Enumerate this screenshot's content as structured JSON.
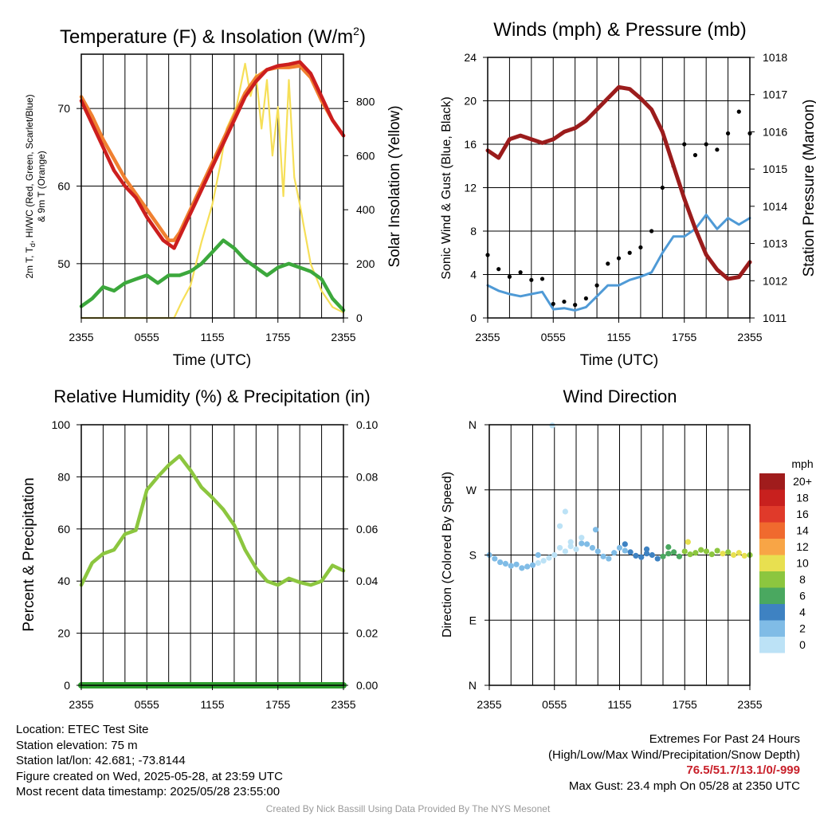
{
  "colors": {
    "red": "#cc1e1e",
    "orange": "#f08030",
    "yellow": "#f6df58",
    "green": "#3ca83c",
    "maroon": "#9b1c1c",
    "blue": "#4f9ad6",
    "black": "#000000",
    "rh": "#8cc63f",
    "precip": "#2e9e2e",
    "extremes": "#c8202a",
    "credit": "#9a9a9a"
  },
  "chart_data": [
    {
      "type": "line",
      "title": "Temperature (F) & Insolation (W/m",
      "title_superscript": "2",
      "title_suffix": ")",
      "xlabel": "Time (UTC)",
      "ylabel_left": "2m T, T",
      "ylabel_left_subscript": "d",
      "ylabel_left_rest": ", HI/WC (Red, Green, Scarlet/Blue)",
      "ylabel_left_line2": "& 9m T (Orange)",
      "ylabel_right": "Solar Insolation (Yellow)",
      "x_ticks": [
        "2355",
        "0555",
        "1155",
        "1755",
        "2355"
      ],
      "ylim_left": [
        43,
        77
      ],
      "ylim_right": [
        0,
        975
      ],
      "y_ticks_left": [
        50,
        60,
        70
      ],
      "y_ticks_right": [
        0,
        200,
        400,
        600,
        800
      ],
      "grid": true,
      "series": [
        {
          "axis": "right",
          "color": "yellow",
          "x": [
            0,
            3,
            6,
            7.5,
            8.5,
            9.2,
            10,
            11,
            12,
            12.7,
            13.3,
            14.2,
            15,
            15.5,
            16,
            16.5,
            17,
            17.5,
            18,
            18.5,
            19,
            19.5,
            20,
            21,
            22,
            23,
            24
          ],
          "y": [
            0,
            0,
            0,
            0,
            0,
            60,
            120,
            280,
            420,
            560,
            700,
            780,
            940,
            820,
            900,
            700,
            880,
            600,
            780,
            450,
            880,
            520,
            420,
            200,
            100,
            40,
            20
          ]
        },
        {
          "axis": "left",
          "color": "orange",
          "x": [
            0,
            1,
            2,
            3,
            4,
            5,
            6,
            7,
            7.5,
            8,
            8.5,
            9,
            10,
            11,
            12,
            13,
            14,
            15,
            16,
            17,
            18,
            19,
            20,
            21,
            22,
            23,
            24
          ],
          "y": [
            71.5,
            69,
            66,
            63.5,
            61,
            59,
            57,
            55,
            54,
            53,
            53,
            54,
            57,
            60,
            63,
            66,
            69,
            72,
            74,
            75,
            75.3,
            75.3,
            75.5,
            74,
            71,
            68.5,
            66.5
          ]
        },
        {
          "axis": "left",
          "color": "red",
          "x": [
            0,
            1,
            2,
            3,
            4,
            5,
            6,
            7,
            7.5,
            8,
            8.5,
            9,
            10,
            11,
            12,
            13,
            14,
            15,
            16,
            17,
            18,
            19,
            20,
            21,
            22,
            23,
            24
          ],
          "y": [
            71,
            68,
            65,
            62,
            60,
            58.5,
            56,
            54,
            53,
            52.5,
            52,
            53.5,
            56.5,
            59.5,
            62.5,
            65.5,
            68.5,
            71.5,
            73.5,
            75,
            75.5,
            75.7,
            76,
            74.5,
            71.5,
            68.5,
            66.5
          ]
        },
        {
          "axis": "left",
          "color": "green",
          "x": [
            0,
            1,
            2,
            3,
            4,
            5,
            6,
            7,
            8,
            9,
            10,
            11,
            12,
            13,
            14,
            15,
            16,
            17,
            18,
            19,
            20,
            21,
            22,
            23,
            24
          ],
          "y": [
            44.5,
            45.5,
            47,
            46.5,
            47.5,
            48,
            48.5,
            47.5,
            48.5,
            48.5,
            49,
            50,
            51.5,
            53,
            52,
            50.5,
            49.5,
            48.5,
            49.5,
            50,
            49.5,
            49,
            48,
            45.5,
            44
          ]
        }
      ]
    },
    {
      "type": "scatter",
      "title": "Winds (mph) & Pressure (mb)",
      "xlabel": "Time (UTC)",
      "ylabel_left": "Sonic Wind & Gust (Blue, Black)",
      "ylabel_right": "Station Pressure (Maroon)",
      "x_ticks": [
        "2355",
        "0555",
        "1155",
        "1755",
        "2355"
      ],
      "ylim_left": [
        0,
        24
      ],
      "ylim_right": [
        1011,
        1018
      ],
      "y_ticks_left": [
        0,
        4,
        8,
        12,
        16,
        20,
        24
      ],
      "y_ticks_right": [
        1011,
        1012,
        1013,
        1014,
        1015,
        1016,
        1017,
        1018
      ],
      "grid": true,
      "series": [
        {
          "axis": "left",
          "type": "line",
          "color": "blue",
          "x": [
            0,
            1,
            2,
            3,
            4,
            5,
            6,
            7,
            8,
            9,
            10,
            11,
            12,
            13,
            14,
            15,
            16,
            17,
            18,
            19,
            20,
            21,
            22,
            23,
            24
          ],
          "y": [
            3,
            2.5,
            2.2,
            2,
            2.2,
            2.4,
            0.8,
            0.9,
            0.7,
            1,
            2,
            3,
            3,
            3.5,
            3.8,
            4.2,
            6,
            7.5,
            7.5,
            8.2,
            9.5,
            8.2,
            9.2,
            8.6,
            9.2
          ]
        },
        {
          "axis": "left",
          "type": "scatter",
          "color": "black",
          "x": [
            0,
            1,
            2,
            3,
            4,
            5,
            6,
            7,
            8,
            9,
            10,
            11,
            12,
            13,
            14,
            15,
            16,
            17,
            18,
            19,
            20,
            21,
            22,
            23,
            24
          ],
          "y": [
            5.8,
            4.5,
            3.8,
            4.2,
            3.5,
            3.6,
            1.3,
            1.5,
            1.2,
            1.8,
            3,
            5,
            5.5,
            6,
            6.5,
            8,
            12,
            14,
            16,
            15,
            16,
            15.5,
            17,
            19,
            17
          ]
        },
        {
          "axis": "right",
          "type": "line",
          "color": "maroon",
          "x": [
            0,
            1,
            2,
            3,
            4,
            5,
            6,
            7,
            8,
            9,
            10,
            11,
            12,
            13,
            14,
            15,
            16,
            17,
            18,
            19,
            20,
            21,
            22,
            23,
            24
          ],
          "y": [
            1015.5,
            1015.3,
            1015.8,
            1015.9,
            1015.8,
            1015.7,
            1015.8,
            1016,
            1016.1,
            1016.3,
            1016.6,
            1016.9,
            1017.2,
            1017.15,
            1016.9,
            1016.6,
            1016,
            1015.1,
            1014.2,
            1013.4,
            1012.7,
            1012.3,
            1012.05,
            1012.1,
            1012.5
          ]
        }
      ]
    },
    {
      "type": "line",
      "title": "Relative Humidity (%) & Precipitation (in)",
      "ylabel_left": "Percent & Precipitation",
      "x_ticks": [
        "2355",
        "0555",
        "1155",
        "1755",
        "2355"
      ],
      "ylim_left": [
        0,
        100
      ],
      "ylim_right": [
        0,
        0.1
      ],
      "y_ticks_left": [
        0,
        20,
        40,
        60,
        80,
        100
      ],
      "y_ticks_right": [
        "0.00",
        "0.02",
        "0.04",
        "0.06",
        "0.08",
        "0.10"
      ],
      "grid": true,
      "series": [
        {
          "axis": "left",
          "color": "rh",
          "x": [
            0,
            1,
            2,
            3,
            4,
            5,
            6,
            7,
            8,
            9,
            10,
            11,
            12,
            13,
            14,
            15,
            16,
            17,
            18,
            19,
            20,
            21,
            22,
            23,
            24
          ],
          "y": [
            38.5,
            47,
            50.5,
            52,
            58,
            59.5,
            75,
            80,
            84.5,
            88,
            82.5,
            76,
            72,
            67.5,
            61.5,
            52,
            45,
            40,
            38.5,
            41,
            39.5,
            38.5,
            40,
            46,
            44
          ]
        },
        {
          "axis": "right",
          "color": "precip",
          "x": [
            0,
            24
          ],
          "y": [
            0,
            0
          ]
        }
      ]
    },
    {
      "type": "scatter",
      "title": "Wind Direction",
      "ylabel_left": "Direction (Colored By Speed)",
      "x_ticks": [
        "2355",
        "0555",
        "1155",
        "1755",
        "2355"
      ],
      "y_ticks": [
        "N",
        "E",
        "S",
        "W",
        "N"
      ],
      "ylim": [
        0,
        360
      ],
      "legend": {
        "title": "mph",
        "labels": [
          "20+",
          "18",
          "16",
          "14",
          "12",
          "10",
          "8",
          "6",
          "4",
          "2",
          "0"
        ],
        "colors": [
          "#a01c1c",
          "#c8201e",
          "#e03a2a",
          "#f06a2e",
          "#f8a546",
          "#e8e050",
          "#8cc63f",
          "#4aa860",
          "#3e82c2",
          "#80bce6",
          "#bce2f6"
        ]
      },
      "points": {
        "x": [
          0,
          0.5,
          1,
          1.5,
          2,
          2.5,
          3,
          3.5,
          4,
          4.5,
          5,
          5.5,
          6,
          6.5,
          7,
          7.5,
          8,
          8.5,
          9,
          9.5,
          10,
          10.5,
          11,
          11.5,
          12,
          12.5,
          13,
          13.5,
          14,
          14.5,
          15,
          15.5,
          16,
          16.5,
          17,
          17.5,
          18,
          18.5,
          19,
          19.5,
          20,
          20.5,
          21,
          21.5,
          22,
          22.5,
          23,
          23.5,
          24,
          6.5,
          7.5,
          4.5,
          8.5,
          9.8,
          7,
          5.8,
          12.5,
          14.5,
          16.5,
          18.3
        ],
        "y": [
          180,
          175,
          170,
          168,
          165,
          167,
          162,
          164,
          166,
          169,
          172,
          176,
          180,
          190,
          185,
          192,
          188,
          196,
          195,
          190,
          185,
          178,
          175,
          183,
          190,
          186,
          184,
          179,
          177,
          182,
          180,
          175,
          178,
          182,
          184,
          178,
          185,
          181,
          183,
          187,
          185,
          181,
          186,
          182,
          184,
          180,
          183,
          179,
          180,
          220,
          198,
          180,
          204,
          215,
          240,
          359,
          195,
          188,
          191,
          198
        ],
        "speed": [
          3,
          2,
          2,
          2,
          2,
          2,
          2,
          2,
          2,
          1,
          1,
          1,
          1,
          1,
          1,
          1,
          1,
          2,
          2,
          2,
          2,
          3,
          3,
          3,
          3,
          3,
          4,
          4,
          4,
          4,
          5,
          5,
          6,
          6,
          7,
          7,
          8,
          8,
          8,
          9,
          9,
          9,
          9,
          10,
          9,
          10,
          11,
          10,
          9,
          1,
          1,
          2,
          1,
          2,
          1,
          1,
          4,
          5,
          7,
          11
        ]
      }
    }
  ],
  "info_left": [
    "Location: ETEC Test Site",
    "Station elevation: 75 m",
    "Station lat/lon: 42.681; -73.8144",
    "Figure created on Wed, 2025-05-28, at 23:59 UTC",
    "Most recent data timestamp: 2025/05/28 23:55:00"
  ],
  "info_right": {
    "line1": "Extremes For Past 24 Hours",
    "line2": "(High/Low/Max Wind/Precipitation/Snow Depth)",
    "values": "76.5/51.7/13.1/0/-999",
    "gust": "Max Gust: 23.4 mph On 05/28 at 2350 UTC"
  },
  "credit": "Created By Nick Bassill Using Data Provided By The NYS Mesonet"
}
